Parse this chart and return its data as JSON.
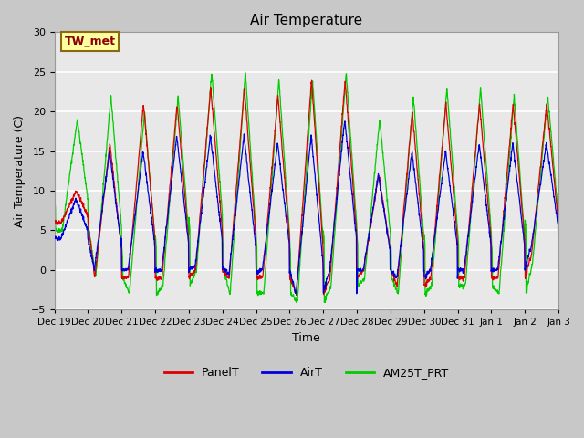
{
  "title": "Air Temperature",
  "ylabel": "Air Temperature (C)",
  "xlabel": "Time",
  "ylim": [
    -5,
    30
  ],
  "annotation_text": "TW_met",
  "annotation_color": "#8b0000",
  "annotation_bg": "#ffffa0",
  "annotation_border": "#8b6914",
  "fig_bg": "#c8c8c8",
  "plot_bg": "#e8e8e8",
  "inner_bg": "#d8d8d8",
  "grid_color": "white",
  "line_colors": {
    "PanelT": "#dd0000",
    "AirT": "#0000dd",
    "AM25T_PRT": "#00cc00"
  },
  "x_tick_labels": [
    "Dec 19",
    "Dec 20",
    "Dec 21",
    "Dec 22",
    "Dec 23",
    "Dec 24",
    "Dec 25",
    "Dec 26",
    "Dec 27",
    "Dec 28",
    "Dec 29",
    "Dec 30",
    "Dec 31",
    "Jan 1",
    "Jan 2",
    "Jan 3"
  ],
  "num_days": 15
}
